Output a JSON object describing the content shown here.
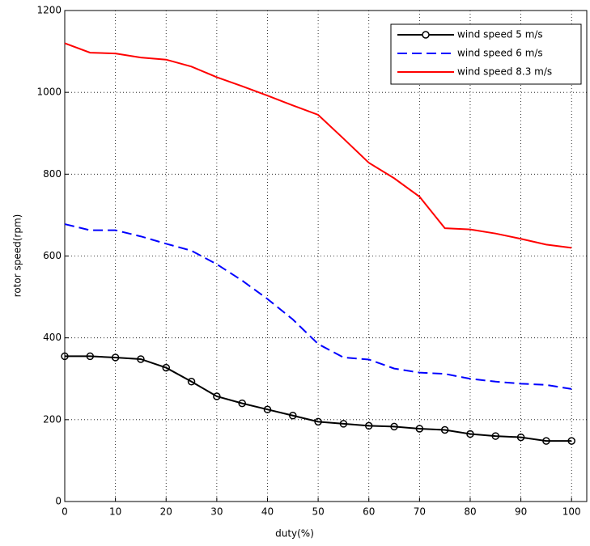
{
  "chart_data": {
    "type": "line",
    "xlabel": "duty(%)",
    "ylabel": "rotor speed(rpm)",
    "x": [
      0,
      5,
      10,
      15,
      20,
      25,
      30,
      35,
      40,
      45,
      50,
      55,
      60,
      65,
      70,
      75,
      80,
      85,
      90,
      95,
      100
    ],
    "series": [
      {
        "name": "wind speed 5 m/s",
        "color": "#000000",
        "linestyle": "-",
        "marker": "o",
        "values": [
          355,
          355,
          352,
          348,
          327,
          293,
          257,
          240,
          225,
          210,
          195,
          190,
          185,
          183,
          178,
          175,
          165,
          160,
          157,
          148,
          148
        ]
      },
      {
        "name": "wind speed 6 m/s",
        "color": "#0000ff",
        "linestyle": "--",
        "marker": "none",
        "values": [
          678,
          663,
          663,
          648,
          630,
          613,
          580,
          540,
          495,
          445,
          385,
          352,
          347,
          325,
          315,
          312,
          300,
          293,
          288,
          285,
          275
        ]
      },
      {
        "name": "wind speed 8.3 m/s",
        "color": "#ff0000",
        "linestyle": "-",
        "marker": "none",
        "values": [
          1120,
          1097,
          1095,
          1085,
          1080,
          1063,
          1037,
          1015,
          992,
          968,
          945,
          887,
          828,
          790,
          745,
          668,
          665,
          655,
          642,
          628,
          620
        ]
      }
    ],
    "xlim": [
      0,
      103
    ],
    "ylim": [
      0,
      1200
    ],
    "xticks": [
      0,
      10,
      20,
      30,
      40,
      50,
      60,
      70,
      80,
      90,
      100
    ],
    "yticks": [
      0,
      200,
      400,
      600,
      800,
      1000,
      1200
    ],
    "grid": true,
    "legend": "upper right"
  }
}
